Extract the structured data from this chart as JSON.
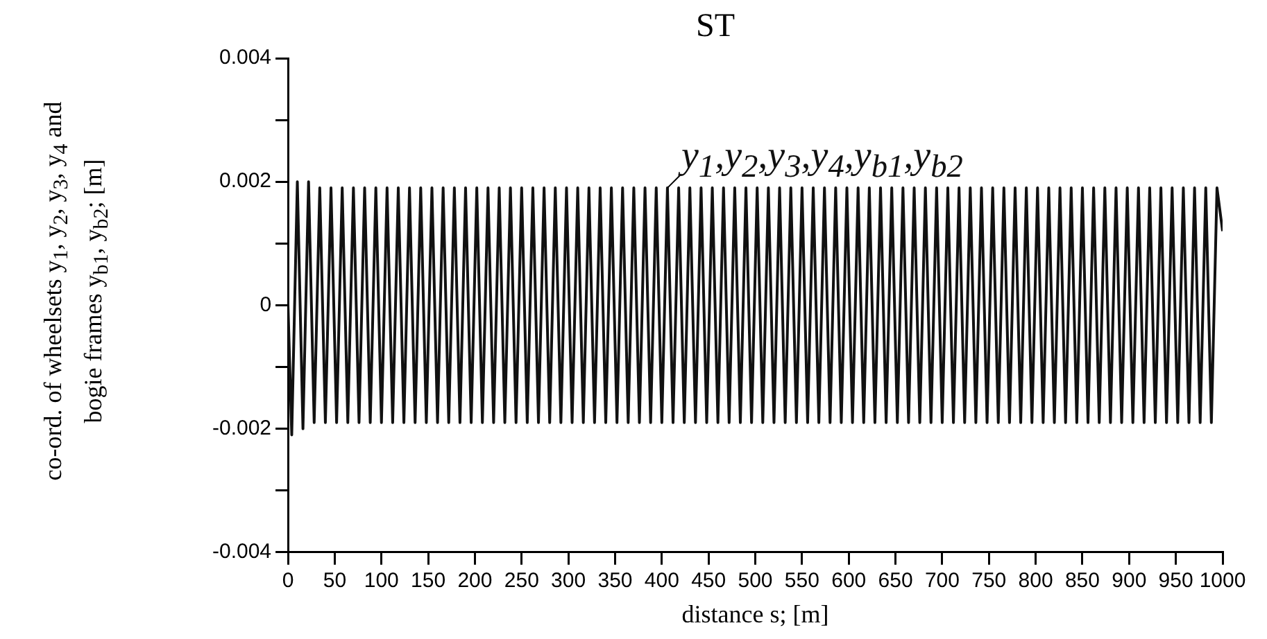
{
  "chart_data": {
    "type": "line",
    "title": "ST",
    "xlabel": "distance s; [m]",
    "ylabel": "co-ord. of wheelsets y$_{1}$, y$_{2}$, y$_{3}$, y$_{4}$ and bogie frames y$_{b1}$, y$_{b2}$; [m]",
    "x": [
      0,
      4,
      10,
      16,
      22,
      28,
      34,
      40,
      46,
      52,
      58,
      64,
      70,
      76,
      82,
      88,
      94,
      100,
      106,
      112,
      118,
      124,
      130,
      136,
      142,
      148,
      154,
      160,
      166,
      172,
      178,
      184,
      190,
      196,
      202,
      208,
      214,
      220,
      226,
      232,
      238,
      244,
      250,
      256,
      262,
      268,
      274,
      280,
      286,
      292,
      298,
      304,
      310,
      316,
      322,
      328,
      334,
      340,
      346,
      352,
      358,
      364,
      370,
      376,
      382,
      388,
      394,
      400,
      406,
      412,
      418,
      424,
      430,
      436,
      442,
      448,
      454,
      460,
      466,
      472,
      478,
      484,
      490,
      496,
      502,
      508,
      514,
      520,
      526,
      532,
      538,
      544,
      550,
      556,
      562,
      568,
      574,
      580,
      586,
      592,
      598,
      604,
      610,
      616,
      622,
      628,
      634,
      640,
      646,
      652,
      658,
      664,
      670,
      676,
      682,
      688,
      694,
      700,
      706,
      712,
      718,
      724,
      730,
      736,
      742,
      748,
      754,
      760,
      766,
      772,
      778,
      784,
      790,
      796,
      802,
      808,
      814,
      820,
      826,
      832,
      838,
      844,
      850,
      856,
      862,
      868,
      874,
      880,
      886,
      892,
      898,
      904,
      910,
      916,
      922,
      928,
      934,
      940,
      946,
      952,
      958,
      964,
      970,
      976,
      982,
      988,
      994,
      1000
    ],
    "series": [
      {
        "name": "y$_{1}$,y$_{2}$,y$_{3}$,y$_{4}$,y$_{b1}$,y$_{b2}$",
        "color": "#111111",
        "values": [
          0,
          -0.0021,
          0.002,
          -0.002,
          0.002,
          -0.0019,
          0.0019,
          -0.0019,
          0.0019,
          -0.0019,
          0.0019,
          -0.0019,
          0.0019,
          -0.0019,
          0.0019,
          -0.0019,
          0.0019,
          -0.0019,
          0.0019,
          -0.0019,
          0.0019,
          -0.0019,
          0.0019,
          -0.0019,
          0.0019,
          -0.0019,
          0.0019,
          -0.0019,
          0.0019,
          -0.0019,
          0.0019,
          -0.0019,
          0.0019,
          -0.0019,
          0.0019,
          -0.0019,
          0.0019,
          -0.0019,
          0.0019,
          -0.0019,
          0.0019,
          -0.0019,
          0.0019,
          -0.0019,
          0.0019,
          -0.0019,
          0.0019,
          -0.0019,
          0.0019,
          -0.0019,
          0.0019,
          -0.0019,
          0.0019,
          -0.0019,
          0.0019,
          -0.0019,
          0.0019,
          -0.0019,
          0.0019,
          -0.0019,
          0.0019,
          -0.0019,
          0.0019,
          -0.0019,
          0.0019,
          -0.0019,
          0.0019,
          -0.0019,
          0.0019,
          -0.0019,
          0.0019,
          -0.0019,
          0.0019,
          -0.0019,
          0.0019,
          -0.0019,
          0.0019,
          -0.0019,
          0.0019,
          -0.0019,
          0.0019,
          -0.0019,
          0.0019,
          -0.0019,
          0.0019,
          -0.0019,
          0.0019,
          -0.0019,
          0.0019,
          -0.0019,
          0.0019,
          -0.0019,
          0.0019,
          -0.0019,
          0.0019,
          -0.0019,
          0.0019,
          -0.0019,
          0.0019,
          -0.0019,
          0.0019,
          -0.0019,
          0.0019,
          -0.0019,
          0.0019,
          -0.0019,
          0.0019,
          -0.0019,
          0.0019,
          -0.0019,
          0.0019,
          -0.0019,
          0.0019,
          -0.0019,
          0.0019,
          -0.0019,
          0.0019,
          -0.0019,
          0.0019,
          -0.0019,
          0.0019,
          -0.0019,
          0.0019,
          -0.0019,
          0.0019,
          -0.0019,
          0.0019,
          -0.0019,
          0.0019,
          -0.0019,
          0.0019,
          -0.0019,
          0.0019,
          -0.0019,
          0.0019,
          -0.0019,
          0.0019,
          -0.0019,
          0.0019,
          -0.0019,
          0.0019,
          -0.0019,
          0.0019,
          -0.0019,
          0.0019,
          -0.0019,
          0.0019,
          -0.0019,
          0.0019,
          -0.0019,
          0.0019,
          -0.0019,
          0.0019,
          -0.0019,
          0.0019,
          -0.0019,
          0.0019,
          -0.0019,
          0.0019,
          -0.0019,
          0.0019,
          -0.0019,
          0.0019,
          -0.0019,
          0.0019,
          -0.0019,
          0.0019,
          0.0012
        ]
      }
    ],
    "xlim": [
      0,
      1000
    ],
    "xticks": [
      0,
      50,
      100,
      150,
      200,
      250,
      300,
      350,
      400,
      450,
      500,
      550,
      600,
      650,
      700,
      750,
      800,
      850,
      900,
      950,
      1000
    ],
    "ylim": [
      -0.004,
      0.004
    ],
    "yticks": [
      -0.004,
      {
        "value": -0.003,
        "label": null
      },
      -0.002,
      {
        "value": -0.001,
        "label": null
      },
      0,
      {
        "value": 0.001,
        "label": null
      },
      0.002,
      {
        "value": 0.003,
        "label": null
      },
      0.004
    ],
    "grid": false,
    "legend": false
  }
}
